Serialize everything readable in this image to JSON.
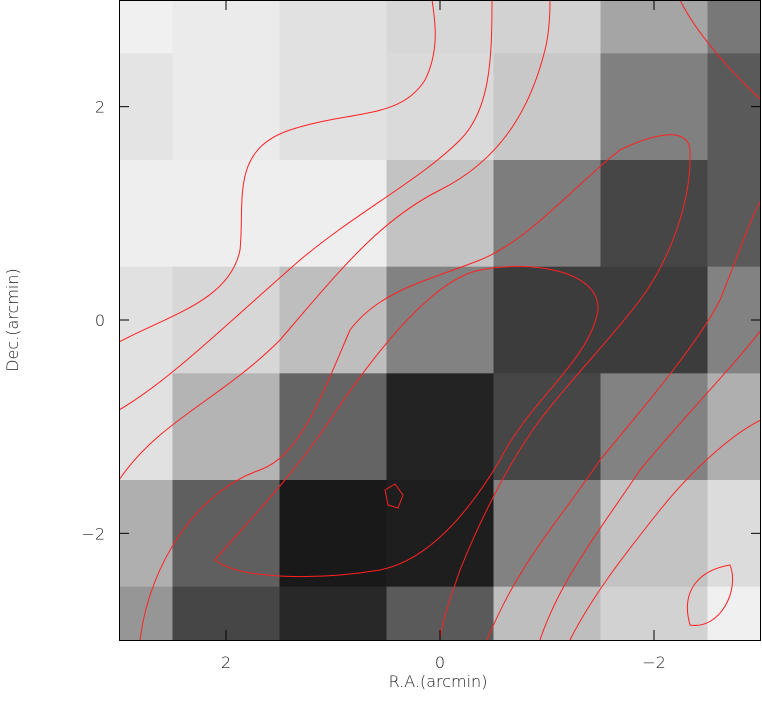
{
  "chart_data": {
    "type": "heatmap",
    "x_label": "R.A.(arcmin)",
    "y_label": "Dec.(arcmin)",
    "x": [
      3,
      2,
      1,
      0,
      -1,
      -2,
      -3
    ],
    "y": [
      3,
      2,
      1,
      0,
      -1,
      -2,
      -3
    ],
    "z": [
      [
        240,
        235,
        225,
        215,
        210,
        165,
        120
      ],
      [
        228,
        235,
        225,
        218,
        200,
        128,
        90
      ],
      [
        238,
        238,
        238,
        195,
        125,
        70,
        90
      ],
      [
        225,
        215,
        190,
        130,
        60,
        60,
        130
      ],
      [
        225,
        180,
        100,
        35,
        70,
        130,
        175
      ],
      [
        175,
        95,
        25,
        30,
        130,
        195,
        220
      ],
      [
        150,
        70,
        40,
        90,
        190,
        210,
        240
      ]
    ],
    "colormap": "gray",
    "zlim": [
      0,
      255
    ],
    "xlim": [
      3,
      -3
    ],
    "ylim": [
      -3,
      3
    ],
    "xticks": [
      2,
      0,
      {
        "value": -2,
        "label": "−2"
      }
    ],
    "yticks": [
      {
        "value": -2,
        "label": "−2"
      },
      0,
      2
    ],
    "contour_color": "#ff2020"
  }
}
